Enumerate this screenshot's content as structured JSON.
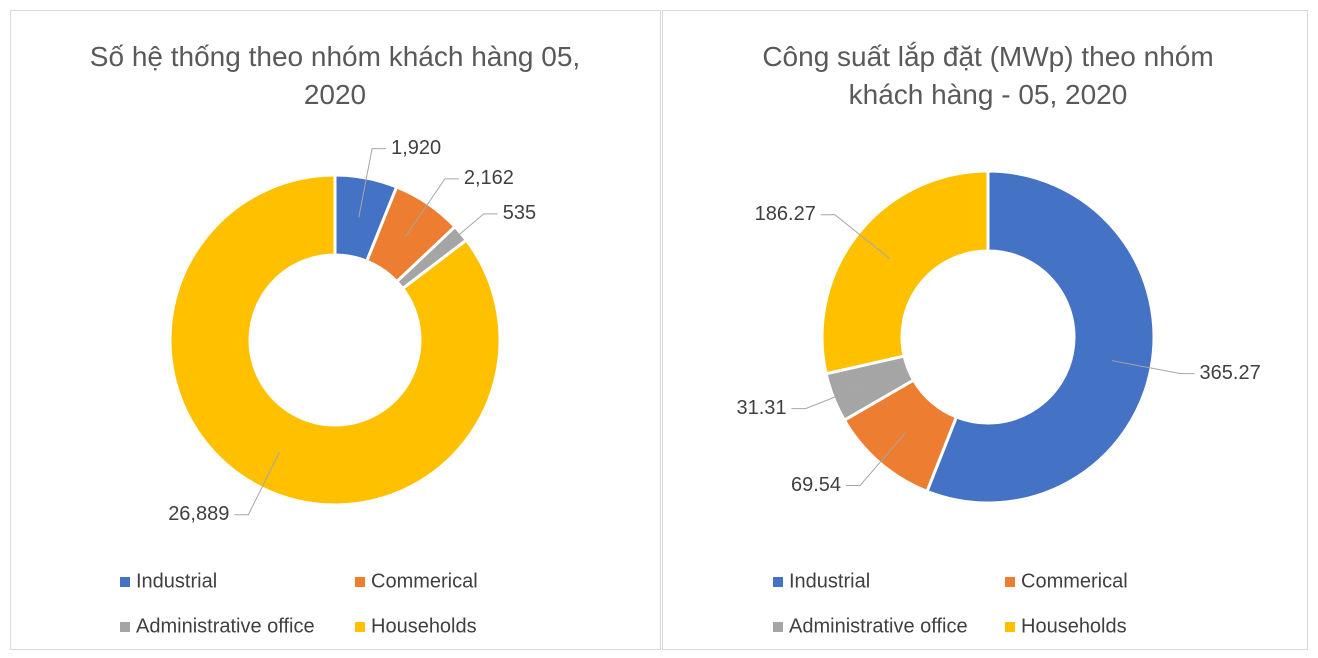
{
  "chart_data": [
    {
      "type": "donut",
      "title": "Số hệ thống theo nhóm khách hàng 05, 2020",
      "categories": [
        "Industrial",
        "Commerical",
        "Administrative office",
        "Households"
      ],
      "colors": [
        "#4472c4",
        "#ed7d31",
        "#a5a5a5",
        "#ffc000"
      ],
      "values": [
        1920,
        2162,
        535,
        26889
      ],
      "value_labels": [
        "1,920",
        "2,162",
        "535",
        "26,889"
      ]
    },
    {
      "type": "donut",
      "title": "Công suất lắp đặt (MWp) theo nhóm khách hàng - 05, 2020",
      "categories": [
        "Industrial",
        "Commerical",
        "Administrative office",
        "Households"
      ],
      "colors": [
        "#4472c4",
        "#ed7d31",
        "#a5a5a5",
        "#ffc000"
      ],
      "values": [
        365.27,
        69.54,
        31.31,
        186.27
      ]
    }
  ]
}
